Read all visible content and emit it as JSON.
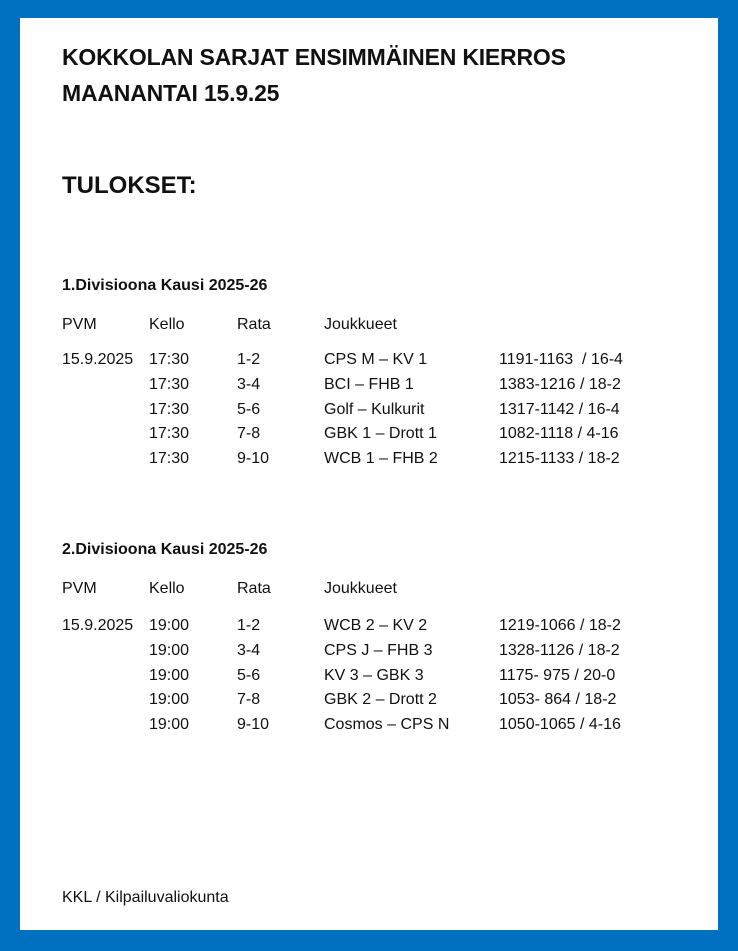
{
  "colors": {
    "border": "#0070C0",
    "background": "#ffffff"
  },
  "title_line1": "KOKKOLAN SARJAT ENSIMMÄINEN KIERROS",
  "title_line2": "MAANANTAI 15.9.25",
  "results_heading": "TULOKSET:",
  "columns": [
    "PVM",
    "Kello",
    "Rata",
    "Joukkueet"
  ],
  "divisions": [
    {
      "heading": "1.Divisioona Kausi 2025-26",
      "rows": [
        [
          "15.9.2025",
          "17:30",
          "1-2",
          "CPS M – KV 1",
          "1191-1163  / 16-4"
        ],
        [
          "",
          "17:30",
          "3-4",
          "BCI – FHB 1",
          "1383-1216 / 18-2"
        ],
        [
          "",
          "17:30",
          "5-6",
          "Golf – Kulkurit",
          "1317-1142 / 16-4"
        ],
        [
          "",
          "17:30",
          "7-8",
          "GBK 1 – Drott 1",
          "1082-1118 / 4-16"
        ],
        [
          "",
          "17:30",
          "9-10",
          "WCB 1 – FHB 2",
          "1215-1133 / 18-2"
        ]
      ]
    },
    {
      "heading": "2.Divisioona Kausi 2025-26",
      "rows": [
        [
          "15.9.2025",
          "19:00",
          "1-2",
          "WCB 2 – KV 2",
          "1219-1066 / 18-2"
        ],
        [
          "",
          "19:00",
          "3-4",
          "CPS J – FHB 3",
          "1328-1126 / 18-2"
        ],
        [
          "",
          "19:00",
          "5-6",
          "KV 3 – GBK 3",
          "1175- 975 / 20-0"
        ],
        [
          "",
          "19:00",
          "7-8",
          "GBK 2 – Drott 2",
          "1053- 864 / 18-2"
        ],
        [
          "",
          "19:00",
          "9-10",
          "Cosmos – CPS N",
          "1050-1065 / 4-16"
        ]
      ]
    }
  ],
  "footer": "KKL / Kilpailuvaliokunta"
}
